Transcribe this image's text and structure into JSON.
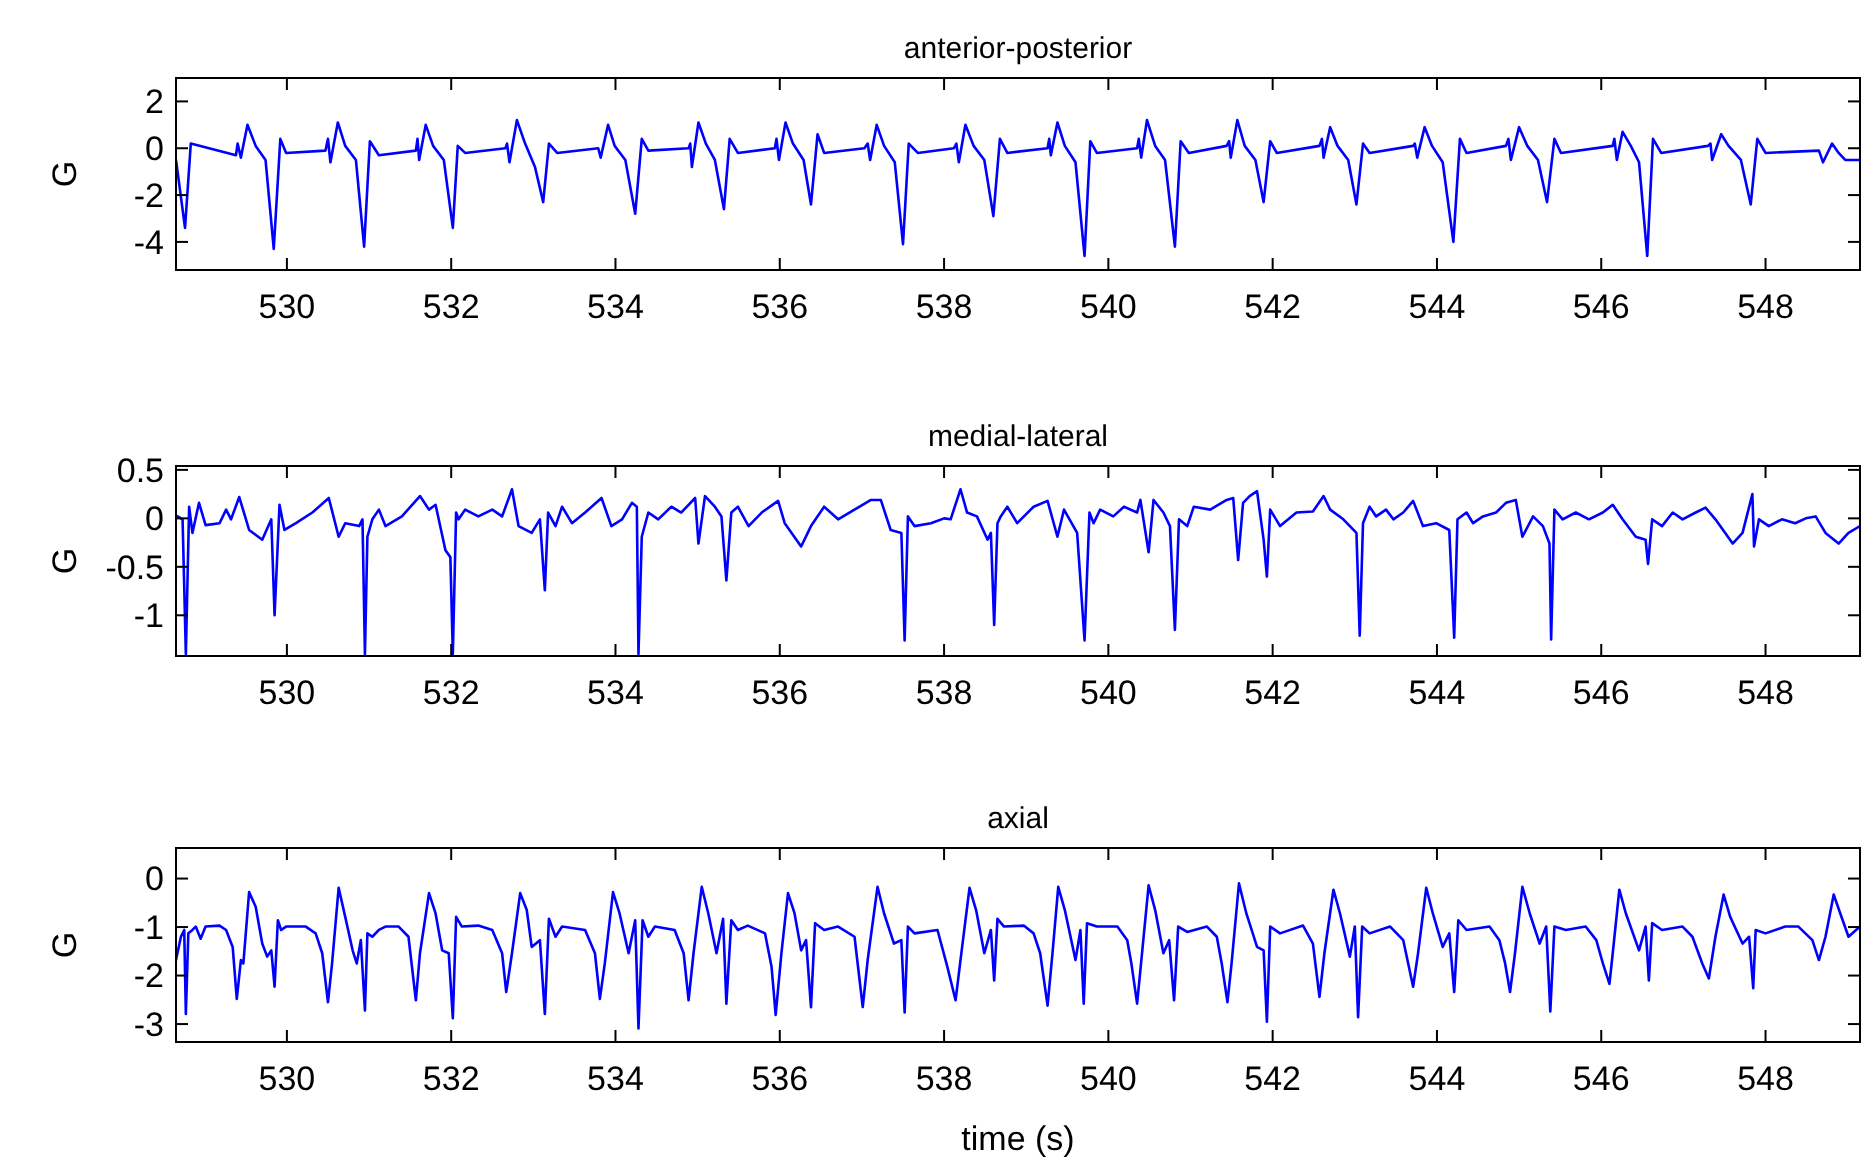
{
  "chart_data": [
    {
      "type": "line",
      "title": "anterior-posterior",
      "ylabel": "G",
      "xlim": [
        528.65,
        549.15
      ],
      "xticks": [
        530,
        532,
        534,
        536,
        538,
        540,
        542,
        544,
        546,
        548
      ],
      "ylim": [
        -5.2,
        3
      ],
      "yticks": [
        -4,
        -2,
        0,
        2
      ],
      "series": [
        {
          "color": "#0000ff",
          "x": [
            528.65,
            528.76,
            528.83,
            529.38,
            529.4,
            529.44,
            529.52,
            529.62,
            529.74,
            529.84,
            529.92,
            529.99,
            530.47,
            530.5,
            530.53,
            530.62,
            530.71,
            530.84,
            530.94,
            531.01,
            531.12,
            531.57,
            531.59,
            531.61,
            531.69,
            531.78,
            531.91,
            532.02,
            532.08,
            532.17,
            532.66,
            532.68,
            532.71,
            532.8,
            532.9,
            533.02,
            533.12,
            533.19,
            533.29,
            533.79,
            533.82,
            533.91,
            533.99,
            534.12,
            534.24,
            534.32,
            534.4,
            534.89,
            534.91,
            534.93,
            535.01,
            535.1,
            535.21,
            535.32,
            535.39,
            535.49,
            535.94,
            535.96,
            535.99,
            536.07,
            536.16,
            536.29,
            536.38,
            536.46,
            536.54,
            537.03,
            537.07,
            537.1,
            537.18,
            537.27,
            537.4,
            537.5,
            537.57,
            537.68,
            538.12,
            538.15,
            538.18,
            538.26,
            538.36,
            538.49,
            538.6,
            538.68,
            538.77,
            539.26,
            539.28,
            539.3,
            539.38,
            539.47,
            539.6,
            539.71,
            539.78,
            539.86,
            540.35,
            540.37,
            540.4,
            540.47,
            540.57,
            540.69,
            540.81,
            540.88,
            540.98,
            541.44,
            541.47,
            541.49,
            541.57,
            541.66,
            541.79,
            541.89,
            541.97,
            542.05,
            542.57,
            542.6,
            542.62,
            542.7,
            542.79,
            542.92,
            543.02,
            543.1,
            543.18,
            543.71,
            543.73,
            543.76,
            543.85,
            543.94,
            544.07,
            544.2,
            544.28,
            544.36,
            544.84,
            544.87,
            544.9,
            545.0,
            545.1,
            545.23,
            545.34,
            545.43,
            545.51,
            546.14,
            546.16,
            546.19,
            546.26,
            546.36,
            546.46,
            546.56,
            546.63,
            546.73,
            547.3,
            547.33,
            547.35,
            547.46,
            547.55,
            547.7,
            547.82,
            547.9,
            548.0,
            548.65,
            548.7,
            548.81,
            548.89,
            548.97,
            549.15
          ],
          "values": [
            -0.5,
            -3.4,
            0.2,
            -0.3,
            0.2,
            -0.4,
            1.0,
            0.1,
            -0.5,
            -4.3,
            0.4,
            -0.2,
            -0.1,
            0.4,
            -0.6,
            1.1,
            0.1,
            -0.5,
            -4.2,
            0.3,
            -0.3,
            -0.1,
            0.4,
            -0.5,
            1.0,
            0.1,
            -0.5,
            -3.4,
            0.1,
            -0.2,
            0.0,
            0.2,
            -0.6,
            1.2,
            0.2,
            -0.8,
            -2.3,
            0.2,
            -0.2,
            0.0,
            -0.4,
            1.0,
            0.1,
            -0.5,
            -2.8,
            0.4,
            -0.1,
            0.0,
            0.2,
            -0.8,
            1.1,
            0.2,
            -0.5,
            -2.6,
            0.4,
            -0.2,
            0.0,
            0.4,
            -0.5,
            1.1,
            0.2,
            -0.5,
            -2.4,
            0.6,
            -0.2,
            0.0,
            0.2,
            -0.5,
            1.0,
            0.1,
            -0.6,
            -4.1,
            0.2,
            -0.2,
            0.0,
            0.2,
            -0.6,
            1.0,
            0.1,
            -0.5,
            -2.9,
            0.4,
            -0.2,
            0.0,
            0.4,
            -0.3,
            1.1,
            0.1,
            -0.6,
            -4.6,
            0.3,
            -0.2,
            0.0,
            0.4,
            -0.4,
            1.2,
            0.1,
            -0.5,
            -4.2,
            0.3,
            -0.2,
            0.1,
            0.3,
            -0.4,
            1.2,
            0.1,
            -0.5,
            -2.3,
            0.3,
            -0.2,
            0.1,
            0.4,
            -0.4,
            0.9,
            0.1,
            -0.5,
            -2.4,
            0.2,
            -0.2,
            0.1,
            0.2,
            -0.4,
            0.9,
            0.1,
            -0.6,
            -4.0,
            0.4,
            -0.2,
            0.1,
            0.4,
            -0.5,
            0.9,
            0.1,
            -0.5,
            -2.3,
            0.4,
            -0.2,
            0.1,
            0.4,
            -0.5,
            0.7,
            0.1,
            -0.6,
            -4.6,
            0.4,
            -0.2,
            0.1,
            0.2,
            -0.5,
            0.6,
            0.1,
            -0.5,
            -2.4,
            0.4,
            -0.2,
            -0.1,
            -0.6,
            0.2,
            -0.2,
            -0.5,
            -0.5
          ]
        }
      ]
    },
    {
      "type": "line",
      "title": "medial-lateral",
      "ylabel": "G",
      "xlim": [
        528.65,
        549.15
      ],
      "xticks": [
        530,
        532,
        534,
        536,
        538,
        540,
        542,
        544,
        546,
        548
      ],
      "ylim": [
        -1.42,
        0.54
      ],
      "yticks": [
        -1,
        -0.5,
        0,
        0.5
      ],
      "series": [
        {
          "color": "#0000ff",
          "x": [
            528.67,
            528.73,
            528.77,
            528.81,
            528.85,
            528.93,
            529.01,
            529.18,
            529.26,
            529.32,
            529.42,
            529.54,
            529.7,
            529.81,
            529.85,
            529.91,
            529.97,
            530.11,
            530.31,
            530.51,
            530.63,
            530.71,
            530.88,
            530.92,
            530.95,
            530.98,
            531.04,
            531.12,
            531.2,
            531.4,
            531.62,
            531.73,
            531.81,
            531.93,
            531.99,
            532.02,
            532.06,
            532.09,
            532.17,
            532.33,
            532.5,
            532.62,
            532.74,
            532.82,
            532.98,
            533.08,
            533.14,
            533.18,
            533.27,
            533.35,
            533.47,
            533.63,
            533.83,
            533.95,
            534.08,
            534.2,
            534.26,
            534.28,
            534.32,
            534.4,
            534.52,
            534.68,
            534.8,
            534.97,
            535.01,
            535.09,
            535.21,
            535.29,
            535.35,
            535.41,
            535.49,
            535.62,
            535.78,
            535.98,
            536.06,
            536.26,
            536.38,
            536.54,
            536.71,
            536.91,
            537.11,
            537.23,
            537.35,
            537.48,
            537.52,
            537.56,
            537.64,
            537.84,
            538.0,
            538.08,
            538.2,
            538.28,
            538.4,
            538.53,
            538.57,
            538.61,
            538.65,
            538.69,
            538.77,
            538.89,
            539.09,
            539.26,
            539.38,
            539.46,
            539.62,
            539.71,
            539.77,
            539.82,
            539.9,
            540.06,
            540.19,
            540.35,
            540.39,
            540.49,
            540.55,
            540.67,
            540.75,
            540.81,
            540.86,
            540.96,
            541.04,
            541.24,
            541.44,
            541.52,
            541.58,
            541.64,
            541.72,
            541.81,
            541.89,
            541.93,
            541.97,
            542.09,
            542.29,
            542.49,
            542.62,
            542.7,
            542.86,
            543.02,
            543.06,
            543.1,
            543.18,
            543.26,
            543.38,
            543.47,
            543.59,
            543.71,
            543.83,
            543.99,
            544.15,
            544.21,
            544.25,
            544.36,
            544.44,
            544.56,
            544.72,
            544.84,
            544.96,
            545.04,
            545.17,
            545.29,
            545.37,
            545.39,
            545.43,
            545.53,
            545.69,
            545.85,
            546.02,
            546.14,
            546.26,
            546.42,
            546.54,
            546.57,
            546.62,
            546.74,
            546.87,
            546.99,
            547.15,
            547.27,
            547.39,
            547.6,
            547.72,
            547.84,
            547.86,
            547.92,
            548.04,
            548.2,
            548.36,
            548.49,
            548.61,
            548.73,
            548.89,
            549.01,
            549.15
          ],
          "values": [
            0.02,
            -0.01,
            -1.4,
            0.12,
            -0.15,
            0.16,
            -0.07,
            -0.05,
            0.09,
            -0.01,
            0.22,
            -0.12,
            -0.22,
            -0.01,
            -1.0,
            0.14,
            -0.12,
            -0.05,
            0.06,
            0.21,
            -0.19,
            -0.05,
            -0.08,
            -0.01,
            -1.4,
            -0.19,
            -0.01,
            0.09,
            -0.08,
            0.02,
            0.23,
            0.09,
            0.14,
            -0.33,
            -0.4,
            -1.4,
            0.06,
            -0.01,
            0.09,
            0.02,
            0.09,
            0.02,
            0.3,
            -0.08,
            -0.15,
            -0.01,
            -0.74,
            0.06,
            -0.08,
            0.12,
            -0.05,
            0.06,
            0.21,
            -0.08,
            -0.01,
            0.16,
            0.12,
            -1.4,
            -0.19,
            0.06,
            -0.01,
            0.12,
            0.06,
            0.21,
            -0.26,
            0.23,
            0.12,
            0.02,
            -0.64,
            0.06,
            0.12,
            -0.08,
            0.06,
            0.18,
            -0.05,
            -0.29,
            -0.08,
            0.12,
            -0.01,
            0.09,
            0.19,
            0.19,
            -0.12,
            -0.15,
            -1.26,
            0.02,
            -0.08,
            -0.05,
            0.0,
            -0.01,
            0.3,
            0.06,
            0.02,
            -0.22,
            -0.15,
            -1.1,
            -0.05,
            0.02,
            0.12,
            -0.05,
            0.12,
            0.18,
            -0.19,
            0.09,
            -0.15,
            -1.26,
            0.06,
            -0.05,
            0.09,
            0.02,
            0.12,
            0.06,
            0.19,
            -0.35,
            0.19,
            0.06,
            -0.08,
            -1.15,
            -0.01,
            -0.08,
            0.12,
            0.09,
            0.19,
            0.21,
            -0.43,
            0.16,
            0.23,
            0.28,
            -0.22,
            -0.6,
            0.09,
            -0.08,
            0.06,
            0.07,
            0.23,
            0.09,
            -0.01,
            -0.15,
            -1.21,
            -0.05,
            0.12,
            0.02,
            0.09,
            -0.01,
            0.06,
            0.18,
            -0.08,
            -0.05,
            -0.12,
            -1.23,
            -0.01,
            0.06,
            -0.05,
            0.02,
            0.06,
            0.16,
            0.19,
            -0.19,
            0.02,
            -0.08,
            -0.26,
            -1.25,
            0.09,
            -0.01,
            0.06,
            -0.01,
            0.06,
            0.14,
            -0.01,
            -0.19,
            -0.22,
            -0.47,
            -0.01,
            -0.08,
            0.06,
            -0.01,
            0.06,
            0.11,
            -0.01,
            -0.26,
            -0.15,
            0.25,
            -0.29,
            -0.01,
            -0.08,
            -0.01,
            -0.05,
            0.0,
            0.02,
            -0.15,
            -0.26,
            -0.15,
            -0.08
          ]
        }
      ]
    },
    {
      "type": "line",
      "title": "axial",
      "xlabel": "time (s)",
      "ylabel": "G",
      "xlim": [
        528.65,
        549.15
      ],
      "xticks": [
        530,
        532,
        534,
        536,
        538,
        540,
        542,
        544,
        546,
        548
      ],
      "ylim": [
        -3.37,
        0.63
      ],
      "yticks": [
        -3,
        -2,
        -1,
        0
      ],
      "series": [
        {
          "color": "#0000ff",
          "x": [
            528.65,
            528.71,
            528.75,
            528.77,
            528.8,
            528.85,
            528.89,
            528.95,
            529.01,
            529.18,
            529.26,
            529.34,
            529.39,
            529.44,
            529.47,
            529.54,
            529.62,
            529.7,
            529.76,
            529.81,
            529.85,
            529.89,
            529.93,
            529.99,
            530.23,
            530.35,
            530.43,
            530.5,
            530.55,
            530.63,
            530.71,
            530.8,
            530.85,
            530.9,
            530.95,
            530.98,
            531.04,
            531.12,
            531.2,
            531.36,
            531.48,
            531.57,
            531.62,
            531.73,
            531.81,
            531.89,
            531.97,
            532.02,
            532.06,
            532.13,
            532.33,
            532.5,
            532.62,
            532.67,
            532.74,
            532.84,
            532.92,
            532.98,
            533.08,
            533.14,
            533.19,
            533.27,
            533.35,
            533.63,
            533.75,
            533.81,
            533.87,
            533.97,
            534.05,
            534.16,
            534.24,
            534.28,
            534.33,
            534.4,
            534.48,
            534.72,
            534.83,
            534.89,
            534.95,
            535.05,
            535.13,
            535.23,
            535.31,
            535.35,
            535.41,
            535.49,
            535.61,
            535.82,
            535.9,
            535.95,
            536.02,
            536.1,
            536.18,
            536.26,
            536.32,
            536.38,
            536.43,
            536.54,
            536.71,
            536.91,
            537.01,
            537.07,
            537.19,
            537.27,
            537.39,
            537.48,
            537.52,
            537.56,
            537.64,
            537.92,
            538.04,
            538.14,
            538.2,
            538.31,
            538.39,
            538.49,
            538.57,
            538.61,
            538.65,
            538.73,
            538.97,
            539.09,
            539.17,
            539.26,
            539.32,
            539.39,
            539.47,
            539.6,
            539.66,
            539.7,
            539.74,
            539.86,
            540.11,
            540.23,
            540.28,
            540.35,
            540.41,
            540.49,
            540.57,
            540.67,
            540.74,
            540.8,
            540.85,
            540.96,
            541.2,
            541.32,
            541.38,
            541.45,
            541.5,
            541.59,
            541.68,
            541.81,
            541.89,
            541.93,
            541.97,
            542.09,
            542.37,
            542.49,
            542.57,
            542.63,
            542.74,
            542.82,
            542.94,
            543.0,
            543.04,
            543.09,
            543.18,
            543.43,
            543.59,
            543.65,
            543.71,
            543.77,
            543.87,
            543.95,
            544.07,
            544.15,
            544.21,
            544.26,
            544.36,
            544.64,
            544.76,
            544.83,
            544.89,
            544.95,
            545.04,
            545.13,
            545.25,
            545.33,
            545.38,
            545.43,
            545.57,
            545.81,
            545.94,
            546.02,
            546.1,
            546.14,
            546.22,
            546.3,
            546.46,
            546.54,
            546.58,
            546.62,
            546.74,
            546.99,
            547.11,
            547.23,
            547.31,
            547.39,
            547.49,
            547.57,
            547.72,
            547.8,
            547.85,
            547.88,
            548.0,
            548.24,
            548.4,
            548.57,
            548.65,
            548.73,
            548.83,
            548.91,
            549.01,
            549.15
          ],
          "values": [
            -1.68,
            -1.2,
            -1.06,
            -2.79,
            -1.13,
            -1.06,
            -0.99,
            -1.24,
            -0.99,
            -0.97,
            -1.06,
            -1.41,
            -2.48,
            -1.68,
            -1.75,
            -0.28,
            -0.58,
            -1.34,
            -1.61,
            -1.48,
            -2.23,
            -0.86,
            -1.06,
            -0.99,
            -0.99,
            -1.13,
            -1.54,
            -2.55,
            -1.75,
            -0.19,
            -0.79,
            -1.48,
            -1.75,
            -1.27,
            -2.72,
            -1.13,
            -1.2,
            -1.06,
            -0.99,
            -0.99,
            -1.2,
            -2.51,
            -1.54,
            -0.3,
            -0.72,
            -1.48,
            -1.54,
            -2.88,
            -0.79,
            -0.99,
            -0.97,
            -1.06,
            -1.54,
            -2.34,
            -1.54,
            -0.3,
            -0.65,
            -1.41,
            -1.27,
            -2.79,
            -0.83,
            -1.2,
            -0.99,
            -1.06,
            -1.54,
            -2.48,
            -1.75,
            -0.28,
            -0.72,
            -1.54,
            -0.86,
            -3.09,
            -0.86,
            -1.2,
            -0.99,
            -1.06,
            -1.54,
            -2.51,
            -1.54,
            -0.17,
            -0.72,
            -1.54,
            -0.83,
            -2.58,
            -0.86,
            -1.06,
            -0.97,
            -1.13,
            -1.82,
            -2.81,
            -1.54,
            -0.3,
            -0.72,
            -1.48,
            -1.27,
            -2.65,
            -0.92,
            -1.06,
            -0.99,
            -1.2,
            -2.65,
            -1.68,
            -0.17,
            -0.72,
            -1.34,
            -1.27,
            -2.76,
            -0.99,
            -1.13,
            -1.06,
            -1.82,
            -2.51,
            -1.68,
            -0.19,
            -0.65,
            -1.54,
            -1.06,
            -2.1,
            -0.83,
            -0.99,
            -0.97,
            -1.13,
            -1.54,
            -2.62,
            -1.54,
            -0.17,
            -0.65,
            -1.68,
            -1.06,
            -2.58,
            -0.92,
            -0.99,
            -0.99,
            -1.27,
            -1.75,
            -2.58,
            -1.54,
            -0.14,
            -0.65,
            -1.54,
            -1.27,
            -2.51,
            -0.99,
            -1.1,
            -0.99,
            -1.2,
            -1.75,
            -2.55,
            -1.75,
            -0.1,
            -0.72,
            -1.41,
            -1.48,
            -2.95,
            -0.99,
            -1.13,
            -0.97,
            -1.34,
            -2.44,
            -1.54,
            -0.23,
            -0.72,
            -1.61,
            -0.99,
            -2.86,
            -0.99,
            -1.13,
            -0.99,
            -1.27,
            -1.75,
            -2.23,
            -1.54,
            -0.19,
            -0.72,
            -1.41,
            -1.13,
            -2.34,
            -0.86,
            -1.06,
            -0.99,
            -1.27,
            -1.75,
            -2.34,
            -1.54,
            -0.17,
            -0.72,
            -1.34,
            -0.99,
            -2.74,
            -0.99,
            -1.06,
            -0.99,
            -1.27,
            -1.75,
            -2.17,
            -1.54,
            -0.23,
            -0.72,
            -1.48,
            -0.99,
            -2.1,
            -0.92,
            -1.06,
            -0.99,
            -1.2,
            -1.75,
            -2.06,
            -1.2,
            -0.33,
            -0.79,
            -1.34,
            -1.2,
            -2.26,
            -1.06,
            -1.13,
            -0.99,
            -0.99,
            -1.27,
            -1.68,
            -1.2,
            -0.33,
            -0.72,
            -1.2,
            -0.99
          ]
        }
      ]
    }
  ]
}
